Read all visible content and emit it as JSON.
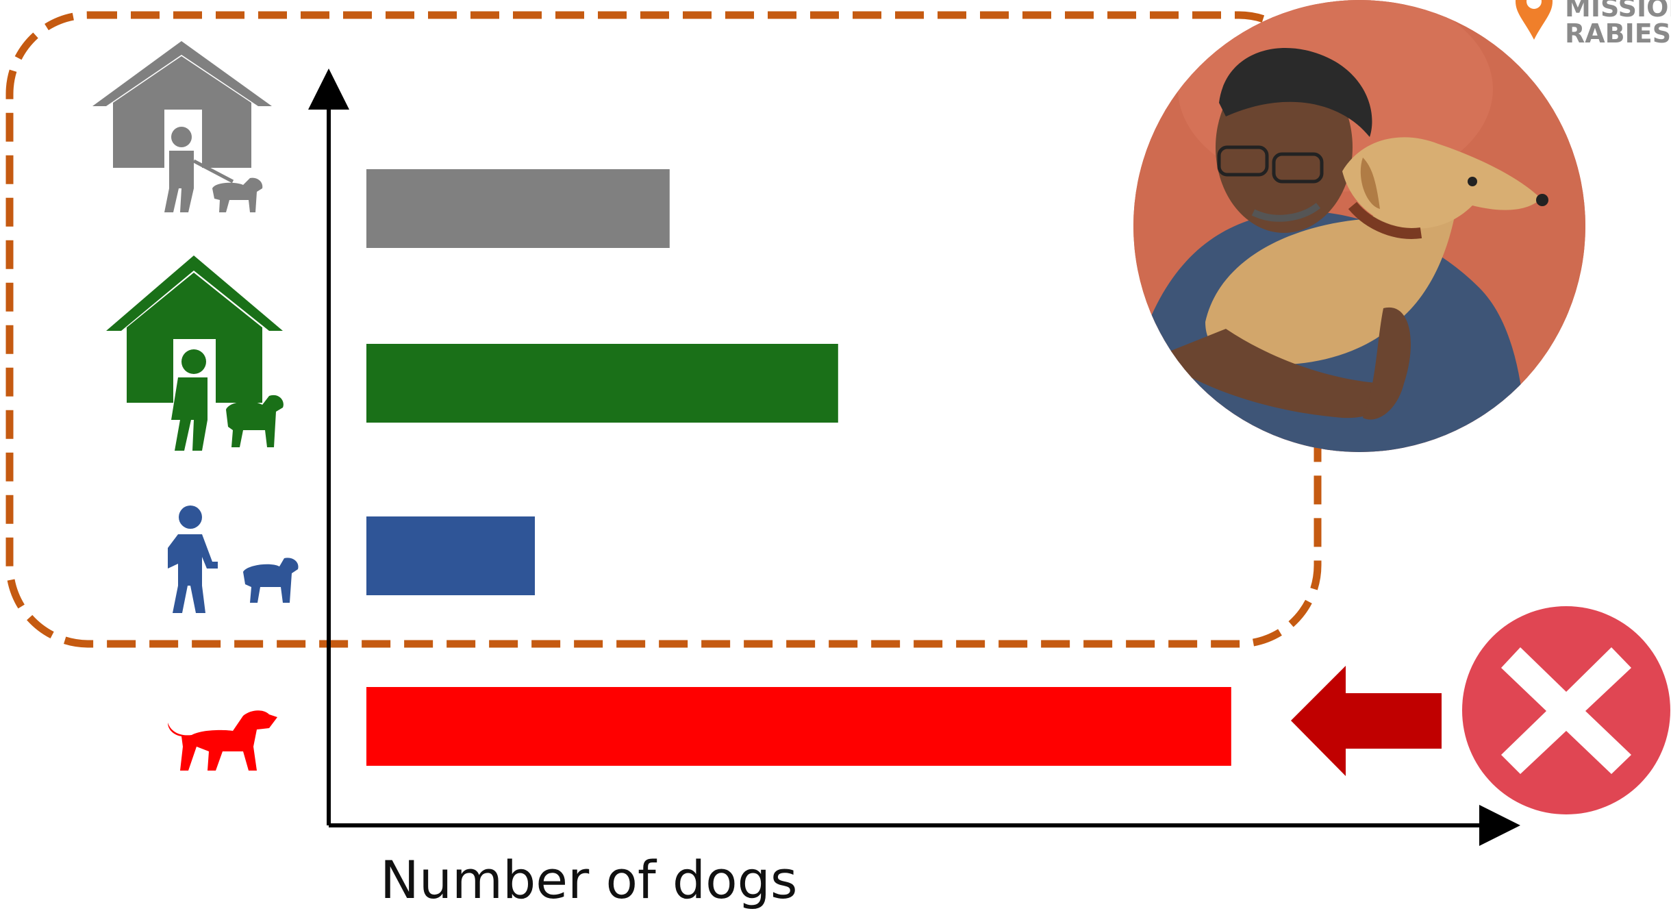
{
  "brand": {
    "line1": "MISSION",
    "line2": "RABIES",
    "pin_color": "#f07f2a",
    "text_color": "#8a8a8a"
  },
  "chart_data": {
    "type": "bar",
    "orientation": "horizontal",
    "xlabel": "Number of dogs",
    "ylabel": "",
    "categories": [
      {
        "icon": "house-person-dog-icon",
        "color": "#808080"
      },
      {
        "icon": "house-person-dog-icon",
        "color": "#1a7018"
      },
      {
        "icon": "person-walking-dog-icon",
        "color": "#2f5597"
      },
      {
        "icon": "dog-icon",
        "color": "#ff0000"
      }
    ],
    "values": [
      27,
      42,
      15,
      77
    ],
    "xlim": [
      0,
      100
    ],
    "grid": false,
    "annotations": [
      {
        "kind": "dashed-outline",
        "color": "#c55a11",
        "groups_categories": [
          0,
          1,
          2
        ]
      },
      {
        "kind": "arrow",
        "color": "#c00000",
        "points_to_category": 3
      },
      {
        "kind": "x-mark",
        "color": "#e04653"
      },
      {
        "kind": "photo",
        "description_icon": "man-hugging-dog-photo"
      }
    ]
  }
}
